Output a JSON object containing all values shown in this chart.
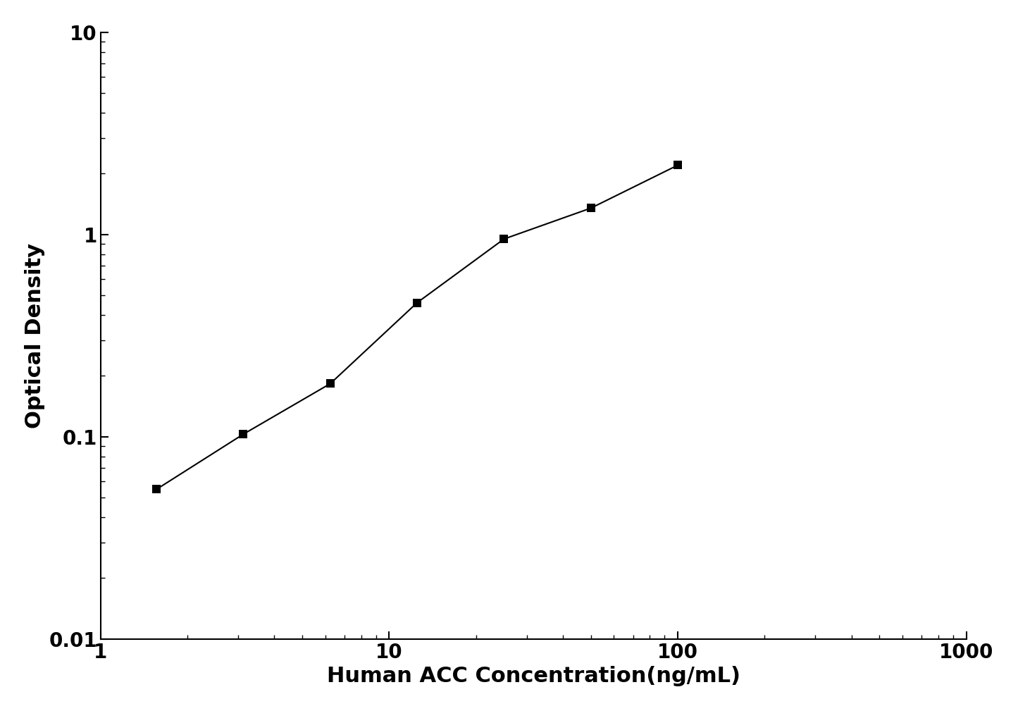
{
  "x_data": [
    1.563,
    3.125,
    6.25,
    12.5,
    25.0,
    50.0,
    100.0
  ],
  "y_data": [
    0.055,
    0.103,
    0.183,
    0.46,
    0.95,
    1.35,
    2.2
  ],
  "xlabel": "Human ACC Concentration(ng/mL)",
  "ylabel": "Optical Density",
  "xlim_log": [
    1,
    1000
  ],
  "ylim_log": [
    0.01,
    10
  ],
  "x_ticks": [
    1,
    10,
    100,
    1000
  ],
  "y_ticks": [
    0.01,
    0.1,
    1,
    10
  ],
  "x_tick_labels": [
    "1",
    "10",
    "100",
    "1000"
  ],
  "y_tick_labels": [
    "0.01",
    "0.1",
    "1",
    "10"
  ],
  "line_color": "#000000",
  "marker_color": "#000000",
  "marker": "s",
  "marker_size": 9,
  "line_width": 1.5,
  "xlabel_fontsize": 22,
  "ylabel_fontsize": 22,
  "tick_fontsize": 20,
  "background_color": "#ffffff",
  "label_fontweight": "bold",
  "curve_x_end": 130
}
